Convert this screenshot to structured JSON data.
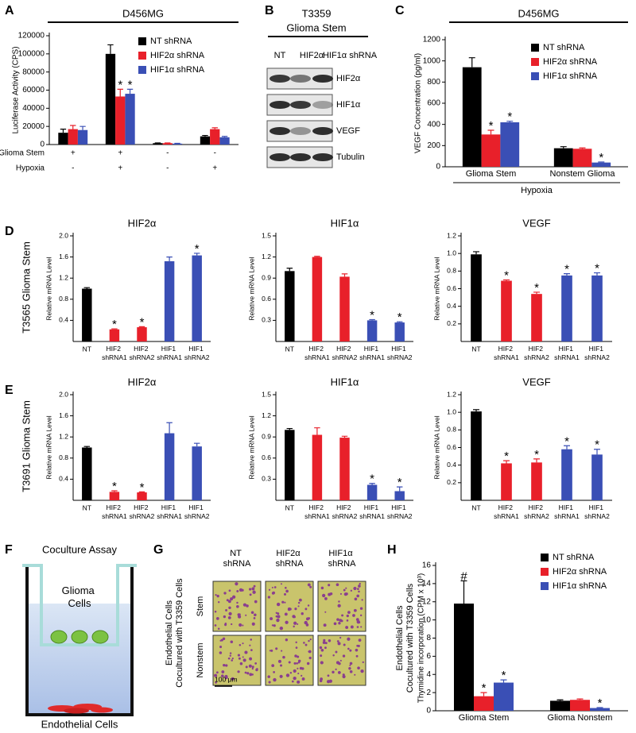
{
  "panel_letters": [
    "A",
    "B",
    "C",
    "D",
    "E",
    "F",
    "G",
    "H"
  ],
  "row_labels": [
    "T3565 Glioma Stem",
    "T3691 Glioma Stem"
  ],
  "chart_data": [
    {
      "type": "bar",
      "header": "D456MG",
      "ylabel": "Luciferase Activity (CPS)",
      "ylim": [
        0,
        120000
      ],
      "yticks": [
        0,
        20000,
        40000,
        60000,
        80000,
        100000,
        120000
      ],
      "categories": [
        null,
        null,
        null,
        null
      ],
      "series": [
        {
          "name": "NT shRNA",
          "color": "#000000",
          "values": [
            13000,
            100000,
            1500,
            9000
          ],
          "errors": [
            4000,
            10000,
            300,
            1000
          ],
          "marks": [
            null,
            null,
            null,
            null
          ]
        },
        {
          "name": "HIF2α shRNA",
          "color": "#e8202a",
          "values": [
            17000,
            53000,
            1500,
            17000
          ],
          "errors": [
            4000,
            8000,
            300,
            1500
          ],
          "marks": [
            null,
            "*",
            null,
            null
          ]
        },
        {
          "name": "HIF1α shRNA",
          "color": "#3a4fb5",
          "values": [
            16000,
            56000,
            1000,
            8000
          ],
          "errors": [
            4000,
            5000,
            300,
            1000
          ],
          "marks": [
            null,
            "*",
            null,
            null
          ]
        }
      ],
      "conditions": [
        {
          "name": "Glioma Stem",
          "values": [
            "+",
            "+",
            "-",
            "-"
          ]
        },
        {
          "name": "Hypoxia",
          "values": [
            "-",
            "+",
            "-",
            "+"
          ]
        }
      ]
    },
    {
      "type": "bar",
      "header": "D456MG",
      "ylabel": "VEGF Concentration (pg/ml)",
      "xlabel": "Hypoxia",
      "ylim": [
        0,
        1200
      ],
      "yticks": [
        0,
        200,
        400,
        600,
        800,
        1000,
        1200
      ],
      "categories": [
        "Glioma Stem",
        "Nonstem Glioma"
      ],
      "series": [
        {
          "name": "NT shRNA",
          "color": "#000000",
          "values": [
            940,
            175
          ],
          "errors": [
            90,
            15
          ],
          "marks": [
            null,
            null
          ]
        },
        {
          "name": "HIF2α shRNA",
          "color": "#e8202a",
          "values": [
            305,
            170
          ],
          "errors": [
            40,
            8
          ],
          "marks": [
            "*",
            null
          ]
        },
        {
          "name": "HIF1α shRNA",
          "color": "#3a4fb5",
          "values": [
            420,
            40
          ],
          "errors": [
            10,
            5
          ],
          "marks": [
            "*",
            "*"
          ]
        }
      ]
    },
    {
      "type": "bar",
      "title": "HIF2α",
      "ylabel": "Relative mRNA Level",
      "ylim": [
        0,
        2
      ],
      "yticks": [
        0.4,
        0.8,
        1.2,
        1.6,
        {
          "value": 2,
          "label": "2.0"
        }
      ],
      "categories": [
        "NT",
        "HIF2 shRNA1",
        "HIF2 shRNA2",
        "HIF1 shRNA1",
        "HIF1 shRNA2"
      ],
      "colors": [
        "#000000",
        "#e8202a",
        "#e8202a",
        "#3a4fb5",
        "#3a4fb5"
      ],
      "values": [
        1.0,
        0.23,
        0.27,
        1.52,
        1.63
      ],
      "errors": [
        0.02,
        0.01,
        0.01,
        0.08,
        0.04
      ],
      "marks": [
        null,
        "*",
        "*",
        null,
        "*"
      ]
    },
    {
      "type": "bar",
      "title": "HIF1α",
      "ylabel": "Relative mRNA Level",
      "ylim": [
        0,
        1.5
      ],
      "yticks": [
        0.3,
        0.6,
        0.9,
        1.2,
        1.5
      ],
      "categories": [
        "NT",
        "HIF2 shRNA1",
        "HIF2 shRNA2",
        "HIF1 shRNA1",
        "HIF1 shRNA2"
      ],
      "colors": [
        "#000000",
        "#e8202a",
        "#e8202a",
        "#3a4fb5",
        "#3a4fb5"
      ],
      "values": [
        1.0,
        1.2,
        0.92,
        0.3,
        0.27
      ],
      "errors": [
        0.04,
        0.01,
        0.04,
        0.01,
        0.01
      ],
      "marks": [
        null,
        null,
        null,
        "*",
        "*"
      ]
    },
    {
      "type": "bar",
      "title": "VEGF",
      "ylabel": "Relative mRNA Level",
      "ylim": [
        0,
        1.2
      ],
      "yticks": [
        0.2,
        0.4,
        0.6,
        0.8,
        {
          "value": 1,
          "label": "1.0"
        },
        1.2
      ],
      "categories": [
        "NT",
        "HIF2 shRNA1",
        "HIF2 shRNA2",
        "HIF1 shRNA1",
        "HIF1 shRNA2"
      ],
      "colors": [
        "#000000",
        "#e8202a",
        "#e8202a",
        "#3a4fb5",
        "#3a4fb5"
      ],
      "values": [
        0.99,
        0.69,
        0.54,
        0.75,
        0.75
      ],
      "errors": [
        0.03,
        0.01,
        0.02,
        0.02,
        0.03
      ],
      "marks": [
        null,
        "*",
        "*",
        "*",
        "*"
      ]
    },
    {
      "type": "bar",
      "title": "HIF2α",
      "ylabel": "Relative mRNA Level",
      "ylim": [
        0,
        2
      ],
      "yticks": [
        0.4,
        0.8,
        1.2,
        1.6,
        {
          "value": 2,
          "label": "2.0"
        }
      ],
      "categories": [
        "NT",
        "HIF2 shRNA1",
        "HIF2 shRNA2",
        "HIF1 shRNA1",
        "HIF1 shRNA2"
      ],
      "colors": [
        "#000000",
        "#e8202a",
        "#e8202a",
        "#3a4fb5",
        "#3a4fb5"
      ],
      "values": [
        1.0,
        0.16,
        0.15,
        1.27,
        1.02
      ],
      "errors": [
        0.02,
        0.02,
        0.01,
        0.2,
        0.06
      ],
      "marks": [
        null,
        "*",
        "*",
        null,
        null
      ]
    },
    {
      "type": "bar",
      "title": "HIF1α",
      "ylabel": "Relative mRNA Level",
      "ylim": [
        0,
        1.5
      ],
      "yticks": [
        0.3,
        0.6,
        0.9,
        1.2,
        1.5
      ],
      "categories": [
        "NT",
        "HIF2 shRNA1",
        "HIF2 shRNA2",
        "HIF1 shRNA1",
        "HIF1 shRNA2"
      ],
      "colors": [
        "#000000",
        "#e8202a",
        "#e8202a",
        "#3a4fb5",
        "#3a4fb5"
      ],
      "values": [
        1.0,
        0.93,
        0.89,
        0.22,
        0.13
      ],
      "errors": [
        0.02,
        0.1,
        0.02,
        0.02,
        0.06
      ],
      "marks": [
        null,
        null,
        null,
        "*",
        "*"
      ]
    },
    {
      "type": "bar",
      "title": "VEGF",
      "ylabel": "Relative mRNA Level",
      "ylim": [
        0,
        1.2
      ],
      "yticks": [
        0.2,
        0.4,
        0.6,
        0.8,
        {
          "value": 1,
          "label": "1.0"
        },
        1.2
      ],
      "categories": [
        "NT",
        "HIF2 shRNA1",
        "HIF2 shRNA2",
        "HIF1 shRNA1",
        "HIF1 shRNA2"
      ],
      "colors": [
        "#000000",
        "#e8202a",
        "#e8202a",
        "#3a4fb5",
        "#3a4fb5"
      ],
      "values": [
        1.01,
        0.42,
        0.43,
        0.58,
        0.52
      ],
      "errors": [
        0.02,
        0.03,
        0.04,
        0.04,
        0.06
      ],
      "marks": [
        null,
        "*",
        "*",
        "*",
        "*"
      ]
    },
    {
      "type": "bar",
      "ylabel_title": [
        "Endothelial Cells",
        "Cocultured with T3359 Cells"
      ],
      "ylabel": "Thymidine incorporation (CPM x 10³)",
      "ylim": [
        0,
        16
      ],
      "yticks": [
        0,
        2,
        4,
        6,
        8,
        10,
        12,
        14,
        16
      ],
      "categories": [
        "Glioma Stem",
        "Glioma Nonstem"
      ],
      "series": [
        {
          "name": "NT shRNA",
          "color": "#000000",
          "values": [
            11.8,
            1.1
          ],
          "errors": [
            2.5,
            0.1
          ],
          "marks": [
            "#",
            null
          ]
        },
        {
          "name": "HIF2α shRNA",
          "color": "#e8202a",
          "values": [
            1.6,
            1.2
          ],
          "errors": [
            0.4,
            0.1
          ],
          "marks": [
            "*",
            null
          ]
        },
        {
          "name": "HIF1α shRNA",
          "color": "#3a4fb5",
          "values": [
            3.1,
            0.3
          ],
          "errors": [
            0.3,
            0.05
          ],
          "marks": [
            "*",
            "*"
          ]
        }
      ]
    }
  ],
  "blot": {
    "title": "T3359",
    "subtitle": "Glioma Stem",
    "columns": [
      "NT",
      "HIF2α",
      "HIF1α shRNA"
    ],
    "rows": [
      "HIF2α",
      "HIF1α",
      "VEGF",
      "Tubulin"
    ]
  },
  "assay": {
    "title": "Coculture Assay",
    "upper": "Glioma Cells",
    "lower": "Endothelial Cells"
  },
  "micrographs": {
    "label": [
      "Endothelial Cells",
      "Cocultured with T3359 Cells"
    ],
    "columns": [
      "NT shRNA",
      "HIF2α shRNA",
      "HIF1α shRNA"
    ],
    "rows": [
      "Stem",
      "Nonstem"
    ],
    "scale": "100 μm"
  }
}
